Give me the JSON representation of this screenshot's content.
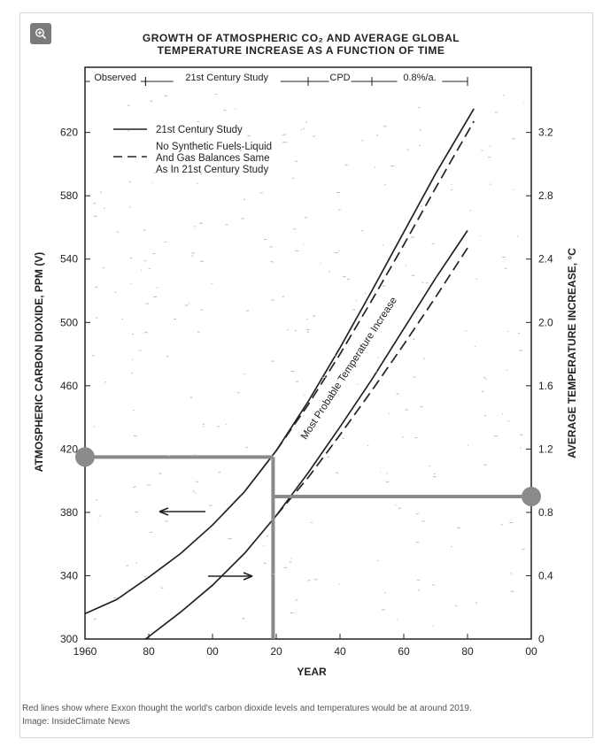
{
  "viewer": {
    "zoom_icon": "zoom-in-icon"
  },
  "chart_data": {
    "type": "line",
    "title_line1": "GROWTH OF ATMOSPHERIC CO₂ AND AVERAGE GLOBAL",
    "title_line2": "TEMPERATURE INCREASE AS A FUNCTION OF TIME",
    "xlabel": "YEAR",
    "ylabel_left": "ATMOSPHERIC CARBON DIOXIDE, PPM (V)",
    "ylabel_right": "AVERAGE TEMPERATURE INCREASE, °C",
    "xlim": [
      1960,
      2100
    ],
    "ylim_left": [
      300,
      650
    ],
    "ylim_right": [
      0,
      3.5
    ],
    "x_ticks": [
      {
        "value": 1960,
        "label": "1960"
      },
      {
        "value": 1980,
        "label": "80"
      },
      {
        "value": 2000,
        "label": "00"
      },
      {
        "value": 2020,
        "label": "20"
      },
      {
        "value": 2040,
        "label": "40"
      },
      {
        "value": 2060,
        "label": "60"
      },
      {
        "value": 2080,
        "label": "80"
      },
      {
        "value": 2100,
        "label": "00"
      }
    ],
    "y_ticks_left": [
      300,
      340,
      380,
      420,
      460,
      500,
      540,
      580,
      620
    ],
    "y_ticks_right": [
      {
        "value": 0,
        "label": "0"
      },
      {
        "value": 0.4,
        "label": "0.4"
      },
      {
        "value": 0.8,
        "label": "0.8"
      },
      {
        "value": 1.2,
        "label": "1.2"
      },
      {
        "value": 1.6,
        "label": "1.6"
      },
      {
        "value": 2.0,
        "label": "2.0"
      },
      {
        "value": 2.4,
        "label": "2.4"
      },
      {
        "value": 2.8,
        "label": "2.8"
      },
      {
        "value": 3.2,
        "label": "3.2"
      }
    ],
    "periods": [
      {
        "label": "Observed",
        "start": 1960,
        "end": 1979
      },
      {
        "label": "21st Century Study",
        "start": 1979,
        "end": 2030
      },
      {
        "label": "CPD",
        "start": 2030,
        "end": 2050
      },
      {
        "label": "0.8%/a.",
        "start": 2050,
        "end": 2080
      }
    ],
    "legend": [
      {
        "label_lines": [
          "21st Century Study"
        ],
        "style": "solid"
      },
      {
        "label_lines": [
          "No Synthetic Fuels-Liquid",
          "And Gas Balances Same",
          "As In 21st Century Study"
        ],
        "style": "dashed"
      }
    ],
    "band_label": "Most Probable Temperature Increase",
    "series": [
      {
        "axis": "left",
        "style": "solid",
        "x": [
          1960,
          1970,
          1980,
          1990,
          2000,
          2010,
          2020,
          2030,
          2040,
          2050,
          2060,
          2070,
          2082
        ],
        "y": [
          316,
          325,
          339,
          354,
          372,
          393,
          419,
          450,
          484,
          520,
          557,
          594,
          635
        ]
      },
      {
        "axis": "left",
        "style": "dashed",
        "x": [
          2020,
          2030,
          2040,
          2050,
          2060,
          2070,
          2082
        ],
        "y": [
          419,
          448,
          480,
          514,
          549,
          585,
          627
        ]
      },
      {
        "axis": "right",
        "style": "solid",
        "x": [
          1979,
          1990,
          2000,
          2010,
          2020,
          2030,
          2040,
          2050,
          2060,
          2070,
          2080
        ],
        "y": [
          0.0,
          0.17,
          0.34,
          0.54,
          0.78,
          1.05,
          1.34,
          1.64,
          1.96,
          2.28,
          2.58
        ]
      },
      {
        "axis": "right",
        "style": "dashed",
        "x": [
          2020,
          2030,
          2040,
          2050,
          2060,
          2070,
          2080
        ],
        "y": [
          0.78,
          1.02,
          1.29,
          1.57,
          1.86,
          2.16,
          2.47
        ]
      }
    ],
    "highlights": {
      "color": "#8a8a8a",
      "year": 2019,
      "co2_ppm": 415,
      "temperature_c": 0.9
    },
    "grid": false
  },
  "caption": {
    "line1": "Red lines show where Exxon thought the world's carbon dioxide levels and temperatures would be at around 2019.",
    "line2": "Image: InsideClimate News"
  }
}
